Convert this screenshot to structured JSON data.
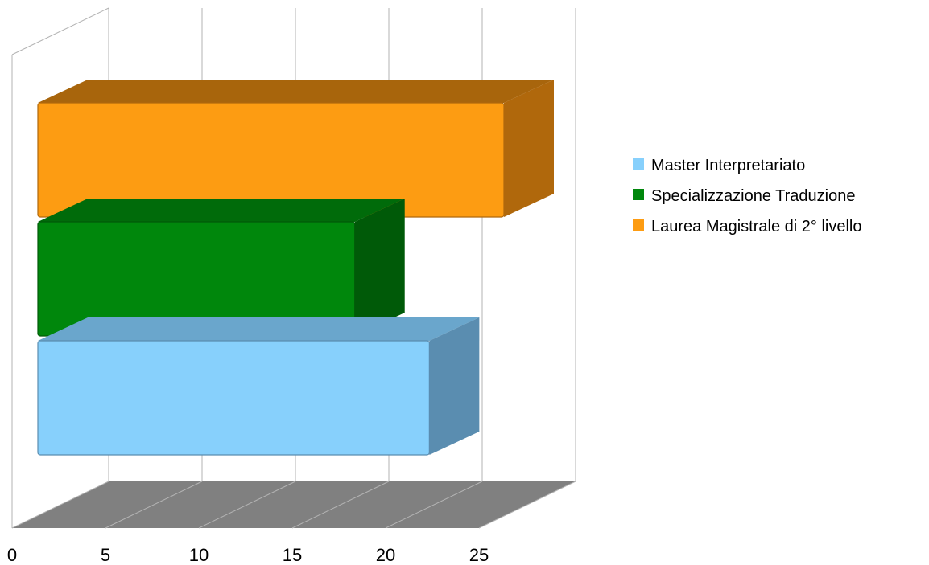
{
  "chart_data": {
    "type": "bar",
    "orientation": "horizontal",
    "three_d": true,
    "series": [
      {
        "name": "Master Interpretariato",
        "value": 21,
        "color": "#87d0fc",
        "side_color": "#5a8db0",
        "top_color": "#6aa6cc"
      },
      {
        "name": "Specializzazione Traduzione",
        "value": 17,
        "color": "#00870c",
        "side_color": "#005a08",
        "top_color": "#006b0a"
      },
      {
        "name": "Laurea Magistrale di 2° livello",
        "value": 25,
        "color": "#fd9c12",
        "side_color": "#b0680c",
        "top_color": "#a8650c"
      }
    ],
    "x_ticks": [
      "0",
      "5",
      "10",
      "15",
      "20",
      "25"
    ],
    "xlim": [
      0,
      25
    ],
    "grid": true,
    "legend_position": "right",
    "floor_color": "#808080",
    "title": "",
    "xlabel": "",
    "ylabel": ""
  }
}
